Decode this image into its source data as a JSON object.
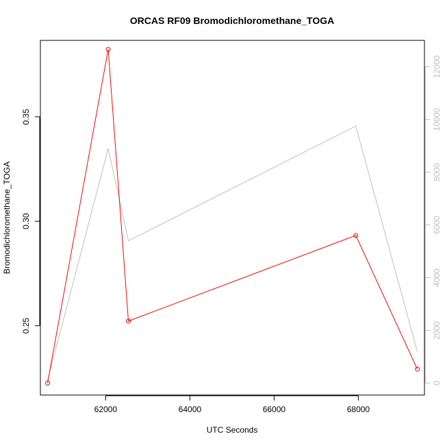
{
  "chart_data": {
    "type": "line",
    "title": "ORCAS RF09 Bromodichloromethane_TOGA",
    "xlabel": "UTC Seconds",
    "ylabel": "Bromodichloromethane_TOGA",
    "y2label": "",
    "xlim": [
      60450,
      69570
    ],
    "ylim": [
      0.2168,
      0.3866
    ],
    "y2lim": [
      -450,
      13000
    ],
    "x_ticks": [
      62000,
      64000,
      66000,
      68000
    ],
    "y_ticks": [
      0.25,
      0.3,
      0.35
    ],
    "y2_ticks": [
      0,
      2000,
      4000,
      6000,
      8000,
      10000,
      12000
    ],
    "x_tick_labels": [
      "62000",
      "64000",
      "66000",
      "68000"
    ],
    "y_tick_labels": [
      "0.25",
      "0.30",
      "0.35"
    ],
    "y2_tick_labels": [
      "0",
      "2000",
      "4000",
      "6000",
      "8000",
      "10000",
      "12000"
    ],
    "grid": false,
    "series": [
      {
        "axis": "left",
        "color": "#ff0000",
        "markers": true,
        "x": [
          60620,
          62060,
          62540,
          67940,
          69400
        ],
        "y": [
          0.2225,
          0.3823,
          0.2522,
          0.2932,
          0.2292
        ]
      },
      {
        "axis": "right",
        "color": "#bebebe",
        "markers": false,
        "x": [
          60620,
          62060,
          62540,
          67940,
          69400
        ],
        "y": [
          100,
          8900,
          5400,
          9750,
          1200
        ]
      }
    ]
  }
}
